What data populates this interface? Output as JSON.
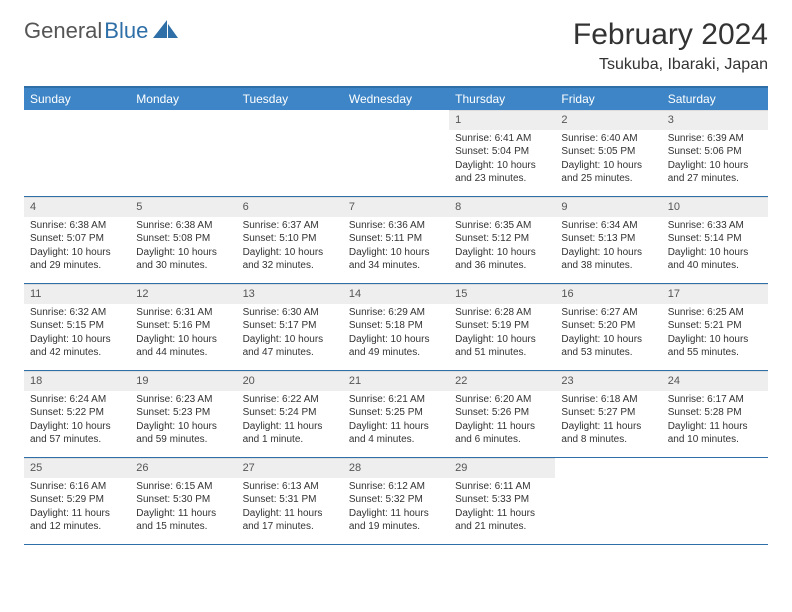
{
  "logo": {
    "text1": "General",
    "text2": "Blue"
  },
  "title": "February 2024",
  "location": "Tsukuba, Ibaraki, Japan",
  "colors": {
    "header_bg": "#3d85c6",
    "header_text": "#ffffff",
    "border": "#2f6fa7",
    "num_bg": "#eeeeee",
    "text": "#333333",
    "logo_gray": "#555555",
    "logo_blue": "#2f6fa7"
  },
  "day_names": [
    "Sunday",
    "Monday",
    "Tuesday",
    "Wednesday",
    "Thursday",
    "Friday",
    "Saturday"
  ],
  "weeks": [
    [
      {
        "empty": true
      },
      {
        "empty": true
      },
      {
        "empty": true
      },
      {
        "empty": true
      },
      {
        "num": "1",
        "sunrise": "Sunrise: 6:41 AM",
        "sunset": "Sunset: 5:04 PM",
        "daylight": "Daylight: 10 hours and 23 minutes."
      },
      {
        "num": "2",
        "sunrise": "Sunrise: 6:40 AM",
        "sunset": "Sunset: 5:05 PM",
        "daylight": "Daylight: 10 hours and 25 minutes."
      },
      {
        "num": "3",
        "sunrise": "Sunrise: 6:39 AM",
        "sunset": "Sunset: 5:06 PM",
        "daylight": "Daylight: 10 hours and 27 minutes."
      }
    ],
    [
      {
        "num": "4",
        "sunrise": "Sunrise: 6:38 AM",
        "sunset": "Sunset: 5:07 PM",
        "daylight": "Daylight: 10 hours and 29 minutes."
      },
      {
        "num": "5",
        "sunrise": "Sunrise: 6:38 AM",
        "sunset": "Sunset: 5:08 PM",
        "daylight": "Daylight: 10 hours and 30 minutes."
      },
      {
        "num": "6",
        "sunrise": "Sunrise: 6:37 AM",
        "sunset": "Sunset: 5:10 PM",
        "daylight": "Daylight: 10 hours and 32 minutes."
      },
      {
        "num": "7",
        "sunrise": "Sunrise: 6:36 AM",
        "sunset": "Sunset: 5:11 PM",
        "daylight": "Daylight: 10 hours and 34 minutes."
      },
      {
        "num": "8",
        "sunrise": "Sunrise: 6:35 AM",
        "sunset": "Sunset: 5:12 PM",
        "daylight": "Daylight: 10 hours and 36 minutes."
      },
      {
        "num": "9",
        "sunrise": "Sunrise: 6:34 AM",
        "sunset": "Sunset: 5:13 PM",
        "daylight": "Daylight: 10 hours and 38 minutes."
      },
      {
        "num": "10",
        "sunrise": "Sunrise: 6:33 AM",
        "sunset": "Sunset: 5:14 PM",
        "daylight": "Daylight: 10 hours and 40 minutes."
      }
    ],
    [
      {
        "num": "11",
        "sunrise": "Sunrise: 6:32 AM",
        "sunset": "Sunset: 5:15 PM",
        "daylight": "Daylight: 10 hours and 42 minutes."
      },
      {
        "num": "12",
        "sunrise": "Sunrise: 6:31 AM",
        "sunset": "Sunset: 5:16 PM",
        "daylight": "Daylight: 10 hours and 44 minutes."
      },
      {
        "num": "13",
        "sunrise": "Sunrise: 6:30 AM",
        "sunset": "Sunset: 5:17 PM",
        "daylight": "Daylight: 10 hours and 47 minutes."
      },
      {
        "num": "14",
        "sunrise": "Sunrise: 6:29 AM",
        "sunset": "Sunset: 5:18 PM",
        "daylight": "Daylight: 10 hours and 49 minutes."
      },
      {
        "num": "15",
        "sunrise": "Sunrise: 6:28 AM",
        "sunset": "Sunset: 5:19 PM",
        "daylight": "Daylight: 10 hours and 51 minutes."
      },
      {
        "num": "16",
        "sunrise": "Sunrise: 6:27 AM",
        "sunset": "Sunset: 5:20 PM",
        "daylight": "Daylight: 10 hours and 53 minutes."
      },
      {
        "num": "17",
        "sunrise": "Sunrise: 6:25 AM",
        "sunset": "Sunset: 5:21 PM",
        "daylight": "Daylight: 10 hours and 55 minutes."
      }
    ],
    [
      {
        "num": "18",
        "sunrise": "Sunrise: 6:24 AM",
        "sunset": "Sunset: 5:22 PM",
        "daylight": "Daylight: 10 hours and 57 minutes."
      },
      {
        "num": "19",
        "sunrise": "Sunrise: 6:23 AM",
        "sunset": "Sunset: 5:23 PM",
        "daylight": "Daylight: 10 hours and 59 minutes."
      },
      {
        "num": "20",
        "sunrise": "Sunrise: 6:22 AM",
        "sunset": "Sunset: 5:24 PM",
        "daylight": "Daylight: 11 hours and 1 minute."
      },
      {
        "num": "21",
        "sunrise": "Sunrise: 6:21 AM",
        "sunset": "Sunset: 5:25 PM",
        "daylight": "Daylight: 11 hours and 4 minutes."
      },
      {
        "num": "22",
        "sunrise": "Sunrise: 6:20 AM",
        "sunset": "Sunset: 5:26 PM",
        "daylight": "Daylight: 11 hours and 6 minutes."
      },
      {
        "num": "23",
        "sunrise": "Sunrise: 6:18 AM",
        "sunset": "Sunset: 5:27 PM",
        "daylight": "Daylight: 11 hours and 8 minutes."
      },
      {
        "num": "24",
        "sunrise": "Sunrise: 6:17 AM",
        "sunset": "Sunset: 5:28 PM",
        "daylight": "Daylight: 11 hours and 10 minutes."
      }
    ],
    [
      {
        "num": "25",
        "sunrise": "Sunrise: 6:16 AM",
        "sunset": "Sunset: 5:29 PM",
        "daylight": "Daylight: 11 hours and 12 minutes."
      },
      {
        "num": "26",
        "sunrise": "Sunrise: 6:15 AM",
        "sunset": "Sunset: 5:30 PM",
        "daylight": "Daylight: 11 hours and 15 minutes."
      },
      {
        "num": "27",
        "sunrise": "Sunrise: 6:13 AM",
        "sunset": "Sunset: 5:31 PM",
        "daylight": "Daylight: 11 hours and 17 minutes."
      },
      {
        "num": "28",
        "sunrise": "Sunrise: 6:12 AM",
        "sunset": "Sunset: 5:32 PM",
        "daylight": "Daylight: 11 hours and 19 minutes."
      },
      {
        "num": "29",
        "sunrise": "Sunrise: 6:11 AM",
        "sunset": "Sunset: 5:33 PM",
        "daylight": "Daylight: 11 hours and 21 minutes."
      },
      {
        "empty": true
      },
      {
        "empty": true
      }
    ]
  ]
}
